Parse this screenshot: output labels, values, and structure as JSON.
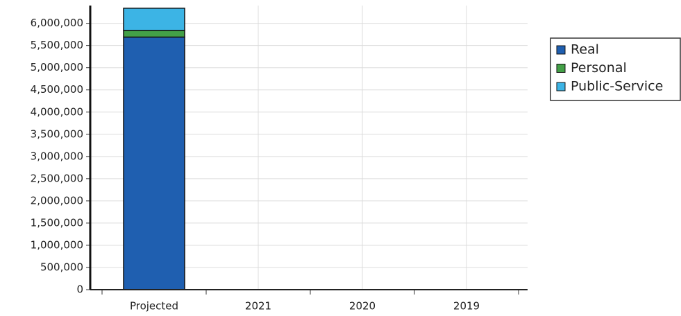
{
  "chart_data": {
    "type": "stacked_bar",
    "categories": [
      "Projected",
      "2021",
      "2020",
      "2019"
    ],
    "series": [
      {
        "name": "Real",
        "color": "#1f5fb0",
        "values": [
          5690000,
          null,
          null,
          null
        ]
      },
      {
        "name": "Personal",
        "color": "#43a047",
        "values": [
          150000,
          null,
          null,
          null
        ]
      },
      {
        "name": "Public-Service",
        "color": "#3cb4e5",
        "values": [
          500000,
          null,
          null,
          null
        ]
      }
    ],
    "ylim": [
      0,
      6400000
    ],
    "yticks": [
      0,
      {
        "value": 500000,
        "label": "500,000"
      },
      {
        "value": 1000000,
        "label": "1,000,000"
      },
      {
        "value": 1500000,
        "label": "1,500,000"
      },
      {
        "value": 2000000,
        "label": "2,000,000"
      },
      {
        "value": 2500000,
        "label": "2,500,000"
      },
      {
        "value": 3000000,
        "label": "3,000,000"
      },
      {
        "value": 3500000,
        "label": "3,500,000"
      },
      {
        "value": 4000000,
        "label": "4,000,000"
      },
      {
        "value": 4500000,
        "label": "4,500,000"
      },
      {
        "value": 5000000,
        "label": "5,000,000"
      },
      {
        "value": 5500000,
        "label": "5,500,000"
      },
      {
        "value": 6000000,
        "label": "6,000,000"
      }
    ],
    "grid": true,
    "legend": "right"
  }
}
